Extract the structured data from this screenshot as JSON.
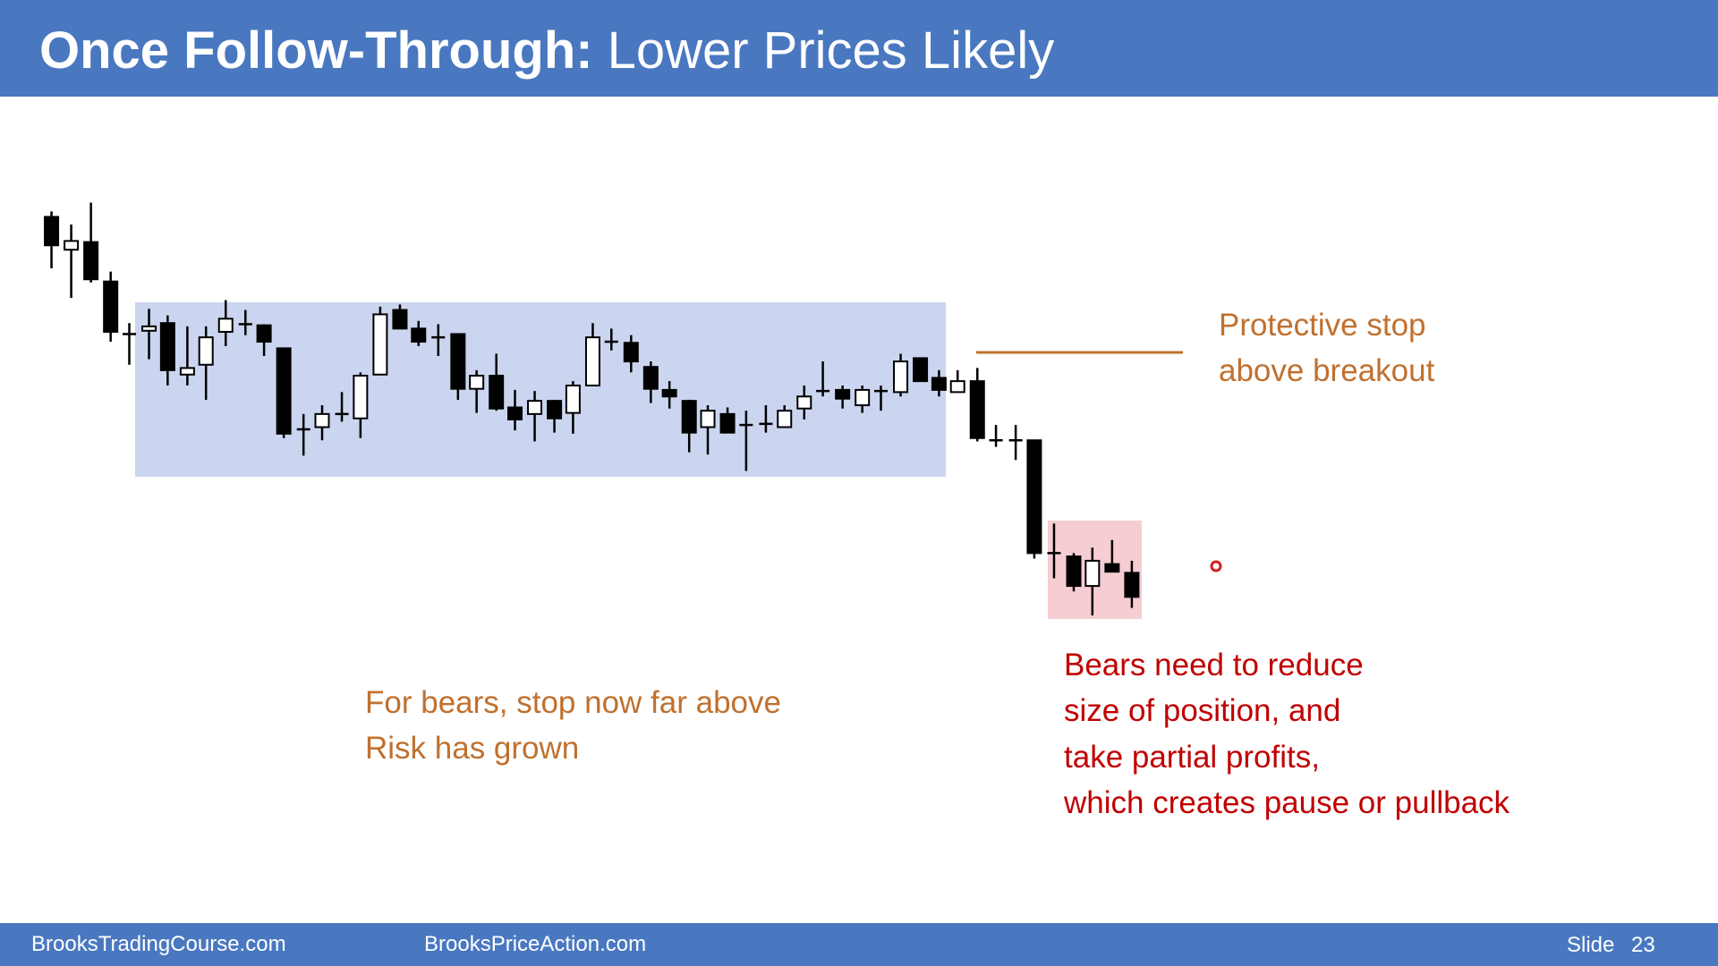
{
  "header": {
    "title_bold": "Once Follow-Through:",
    "title_rest": "Lower Prices Likely"
  },
  "annotations": {
    "stop": [
      "Protective stop",
      "above breakout"
    ],
    "risk": [
      "For bears, stop now far above",
      "Risk has grown"
    ],
    "bears": [
      "Bears need to reduce",
      "size of position, and",
      "take partial profits,",
      "which creates pause or pullback"
    ]
  },
  "footer": {
    "left": "BrooksTradingCourse.com",
    "middle": "BrooksPriceAction.com",
    "slide_label": "Slide",
    "slide_number": "23"
  }
}
